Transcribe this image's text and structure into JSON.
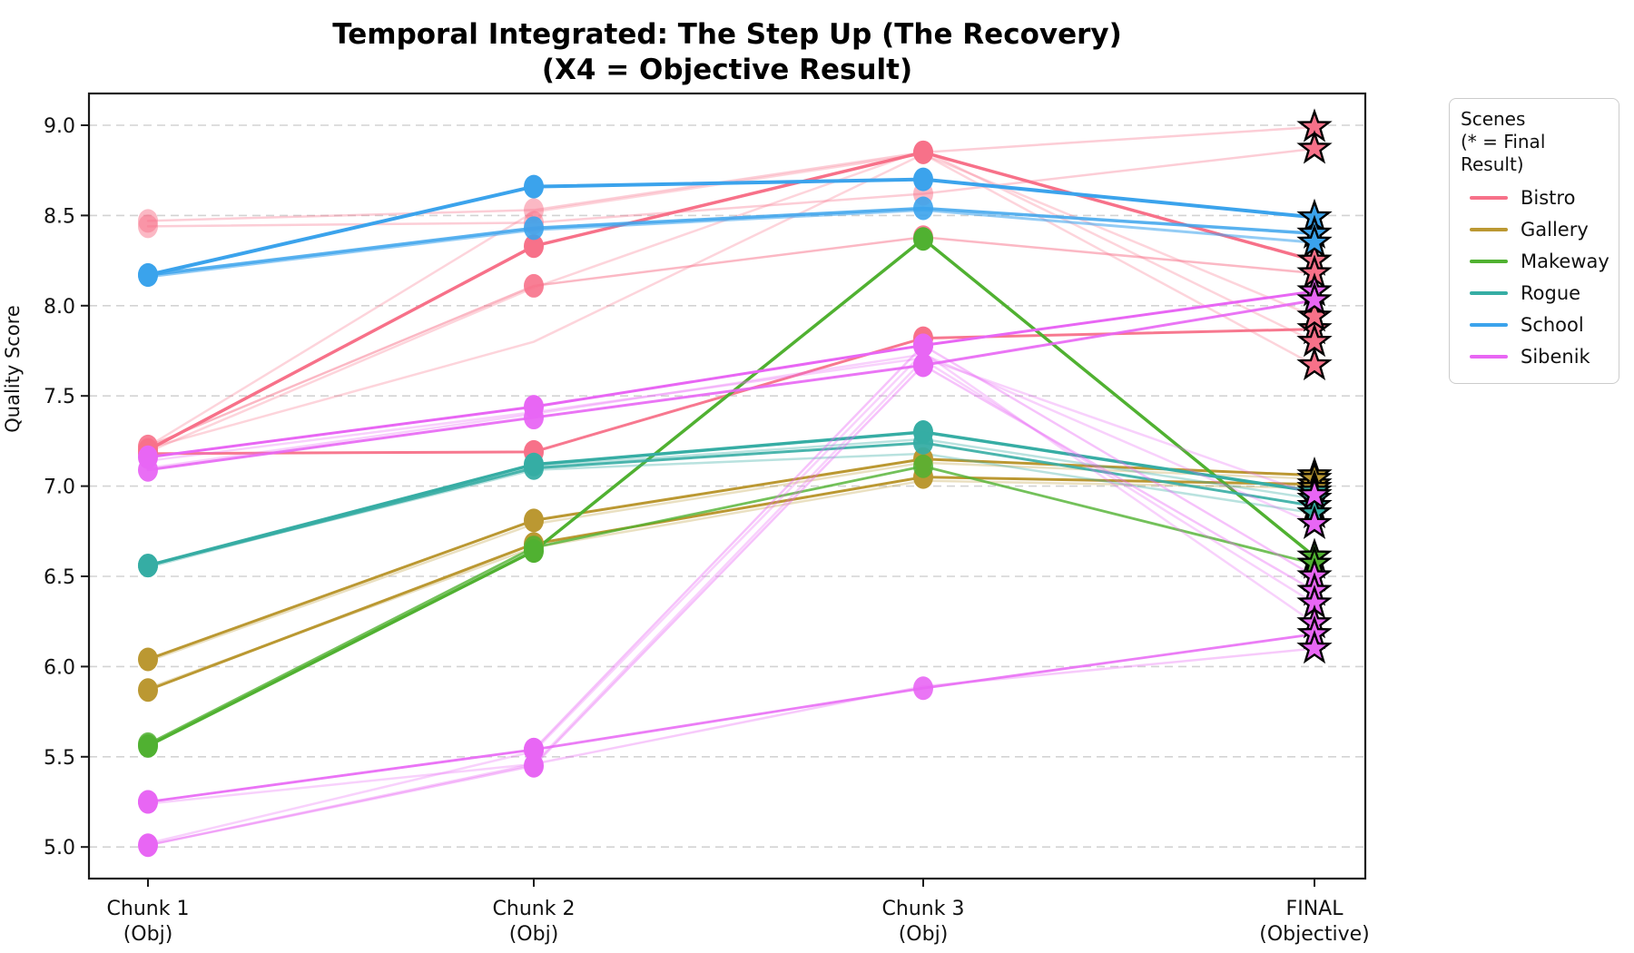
{
  "chart_data": {
    "type": "line",
    "title": "Temporal Integrated: The Step Up (The Recovery)",
    "subtitle": "(X4 = Objective Result)",
    "ylabel": "Quality Score",
    "ylim": [
      4.83,
      9.18
    ],
    "grid": "horizontal-dashed",
    "y_ticks": [
      9.0,
      8.5,
      8.0,
      7.5,
      7.0,
      6.5,
      6.0,
      5.5,
      5.0
    ],
    "x_categories": [
      {
        "line1": "Chunk 1",
        "line2": "(Obj)"
      },
      {
        "line1": "Chunk 2",
        "line2": "(Obj)"
      },
      {
        "line1": "Chunk 3",
        "line2": "(Obj)"
      },
      {
        "line1": "FINAL",
        "line2": "(Objective)"
      }
    ],
    "legend": {
      "title": "Scenes",
      "subtitle": "(* = Final Result)",
      "position": "outside-right"
    },
    "final_marker": "star",
    "chunk_marker": "circle",
    "scenes": [
      {
        "name": "Bistro",
        "color": "#f77189",
        "runs": [
          {
            "values": [
              7.2,
              8.33,
              8.85,
              8.25
            ],
            "alpha": 1.0,
            "width": 3.5,
            "markers": true
          },
          {
            "values": [
              7.18,
              7.19,
              7.82,
              7.87
            ],
            "alpha": 0.95,
            "width": 3.0,
            "markers": true
          },
          {
            "values": [
              8.47,
              8.53,
              8.85,
              8.99
            ],
            "alpha": 0.35,
            "width": 2.5,
            "markers": true,
            "marker_alpha": 0.5
          },
          {
            "values": [
              8.44,
              8.46,
              8.62,
              8.87
            ],
            "alpha": 0.35,
            "width": 2.5,
            "markers": true,
            "marker_alpha": 0.5
          },
          {
            "values": [
              7.22,
              8.11,
              8.38,
              8.18
            ],
            "alpha": 0.5,
            "width": 2.5,
            "markers": true,
            "marker_alpha": 0.9
          },
          {
            "values": [
              7.21,
              7.8,
              8.84,
              7.94
            ],
            "alpha": 0.3,
            "width": 2.5,
            "markers": false
          },
          {
            "values": [
              7.19,
              8.1,
              8.86,
              7.8
            ],
            "alpha": 0.3,
            "width": 2.5,
            "markers": false
          },
          {
            "values": [
              7.22,
              8.52,
              8.84,
              7.67
            ],
            "alpha": 0.3,
            "width": 2.5,
            "markers": false
          }
        ]
      },
      {
        "name": "Gallery",
        "color": "#bb9832",
        "runs": [
          {
            "values": [
              6.04,
              6.81,
              7.15,
              7.06
            ],
            "alpha": 1.0,
            "width": 3.0,
            "markers": true
          },
          {
            "values": [
              5.87,
              6.68,
              7.05,
              7.01
            ],
            "alpha": 1.0,
            "width": 3.0,
            "markers": true
          },
          {
            "values": [
              6.03,
              6.79,
              7.13,
              7.04
            ],
            "alpha": 0.3,
            "width": 2.5,
            "markers": false
          },
          {
            "values": [
              5.88,
              6.66,
              7.03,
              6.99
            ],
            "alpha": 0.3,
            "width": 2.5,
            "markers": false
          }
        ]
      },
      {
        "name": "Makeway",
        "color": "#50b131",
        "runs": [
          {
            "values": [
              5.56,
              6.64,
              8.37,
              6.61
            ],
            "alpha": 1.0,
            "width": 3.5,
            "markers": true
          },
          {
            "values": [
              5.57,
              6.66,
              7.11,
              6.57
            ],
            "alpha": 0.8,
            "width": 2.8,
            "markers": true
          }
        ]
      },
      {
        "name": "Rogue",
        "color": "#36ada4",
        "runs": [
          {
            "values": [
              6.56,
              7.12,
              7.3,
              6.97
            ],
            "alpha": 1.0,
            "width": 3.5,
            "markers": true
          },
          {
            "values": [
              6.56,
              7.1,
              7.24,
              6.89
            ],
            "alpha": 0.9,
            "width": 3.0,
            "markers": true
          },
          {
            "values": [
              6.55,
              7.11,
              7.26,
              6.93
            ],
            "alpha": 0.35,
            "width": 2.5,
            "markers": false
          },
          {
            "values": [
              6.56,
              7.09,
              7.18,
              6.85
            ],
            "alpha": 0.35,
            "width": 2.5,
            "markers": false
          }
        ]
      },
      {
        "name": "School",
        "color": "#3ba3ec",
        "runs": [
          {
            "values": [
              8.17,
              8.66,
              8.7,
              8.49
            ],
            "alpha": 1.0,
            "width": 4.0,
            "markers": true
          },
          {
            "values": [
              8.17,
              8.43,
              8.54,
              8.4
            ],
            "alpha": 0.85,
            "width": 3.5,
            "markers": true
          },
          {
            "values": [
              8.16,
              8.42,
              8.53,
              8.35
            ],
            "alpha": 0.55,
            "width": 3.0,
            "markers": false
          }
        ]
      },
      {
        "name": "Sibenik",
        "color": "#e866f4",
        "runs": [
          {
            "values": [
              7.16,
              7.44,
              7.78,
              8.08
            ],
            "alpha": 1.0,
            "width": 3.0,
            "markers": true
          },
          {
            "values": [
              7.09,
              7.38,
              7.67,
              8.03
            ],
            "alpha": 0.9,
            "width": 3.0,
            "markers": true
          },
          {
            "values": [
              7.14,
              7.41,
              7.71,
              6.95
            ],
            "alpha": 0.3,
            "width": 2.5,
            "markers": false
          },
          {
            "values": [
              7.1,
              7.4,
              7.73,
              6.79
            ],
            "alpha": 0.3,
            "width": 2.5,
            "markers": false
          },
          {
            "values": [
              5.25,
              5.54,
              7.78,
              6.5
            ],
            "alpha": 0.4,
            "width": 2.5,
            "markers": true,
            "marker_alpha": 1.0
          },
          {
            "values": [
              5.01,
              5.45,
              7.67,
              6.42
            ],
            "alpha": 0.4,
            "width": 2.5,
            "markers": true,
            "marker_alpha": 1.0
          },
          {
            "values": [
              5.24,
              5.46,
              7.7,
              6.35
            ],
            "alpha": 0.3,
            "width": 2.5,
            "markers": false
          },
          {
            "values": [
              5.02,
              5.53,
              7.74,
              6.24
            ],
            "alpha": 0.3,
            "width": 2.5,
            "markers": false
          },
          {
            "values": [
              5.25,
              5.54,
              5.88,
              6.18
            ],
            "alpha": 0.85,
            "width": 2.8,
            "markers": true
          },
          {
            "values": [
              5.01,
              5.46,
              5.89,
              6.1
            ],
            "alpha": 0.35,
            "width": 2.5,
            "markers": false
          }
        ]
      }
    ]
  }
}
